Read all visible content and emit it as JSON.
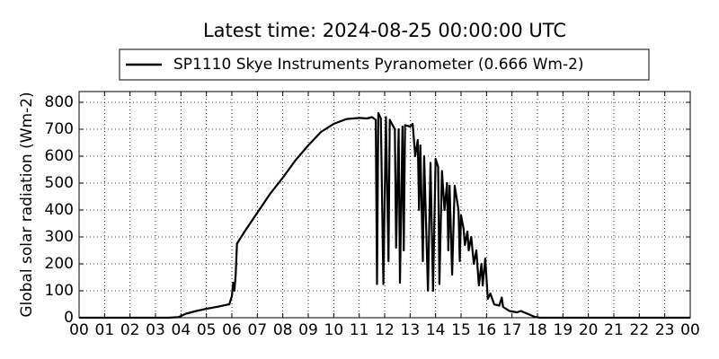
{
  "chart_data": {
    "type": "line",
    "title": "Latest time: 2024-08-25 00:00:00 UTC",
    "ylabel": "Global solar radiation (Wm-2)",
    "x": [
      0,
      3.5,
      3.9,
      4.2,
      4.6,
      5.0,
      5.5,
      5.9,
      6.0,
      6.05,
      6.1,
      6.15,
      6.2,
      6.5,
      7.0,
      7.5,
      8.0,
      8.5,
      9.0,
      9.5,
      10.0,
      10.5,
      11.0,
      11.3,
      11.5,
      11.65,
      11.7,
      11.75,
      11.85,
      11.95,
      12.05,
      12.15,
      12.2,
      12.4,
      12.45,
      12.55,
      12.6,
      12.7,
      12.75,
      12.8,
      13.0,
      13.1,
      13.2,
      13.3,
      13.35,
      13.4,
      13.5,
      13.55,
      13.7,
      13.8,
      13.9,
      14.0,
      14.1,
      14.15,
      14.25,
      14.35,
      14.45,
      14.5,
      14.55,
      14.65,
      14.75,
      14.9,
      14.95,
      15.0,
      15.1,
      15.15,
      15.25,
      15.3,
      15.4,
      15.5,
      15.6,
      15.7,
      15.8,
      15.85,
      15.95,
      16.05,
      16.15,
      16.3,
      16.5,
      16.6,
      16.65,
      16.9,
      17.2,
      17.35,
      17.6,
      17.9,
      18.1,
      24
    ],
    "series": [
      {
        "name": "SP1110 Skye Instruments Pyranometer (0.666 Wm-2)",
        "color": "#000000",
        "values": [
          0,
          0,
          2,
          15,
          25,
          33,
          42,
          50,
          80,
          130,
          100,
          160,
          275,
          320,
          390,
          460,
          520,
          585,
          640,
          690,
          720,
          738,
          742,
          740,
          745,
          735,
          125,
          760,
          740,
          125,
          745,
          210,
          735,
          700,
          260,
          700,
          130,
          710,
          250,
          715,
          710,
          720,
          600,
          660,
          400,
          640,
          210,
          600,
          100,
          575,
          100,
          590,
          560,
          125,
          545,
          400,
          500,
          250,
          490,
          160,
          490,
          400,
          210,
          380,
          330,
          270,
          320,
          250,
          300,
          200,
          250,
          120,
          200,
          120,
          220,
          70,
          90,
          50,
          45,
          75,
          40,
          25,
          20,
          25,
          15,
          3,
          0,
          0
        ]
      }
    ],
    "xlim": [
      0,
      24
    ],
    "xticks": [
      {
        "value": 0,
        "label": "00"
      },
      {
        "value": 1,
        "label": "01"
      },
      {
        "value": 2,
        "label": "02"
      },
      {
        "value": 3,
        "label": "03"
      },
      {
        "value": 4,
        "label": "04"
      },
      {
        "value": 5,
        "label": "05"
      },
      {
        "value": 6,
        "label": "06"
      },
      {
        "value": 7,
        "label": "07"
      },
      {
        "value": 8,
        "label": "08"
      },
      {
        "value": 9,
        "label": "09"
      },
      10,
      11,
      12,
      13,
      14,
      15,
      16,
      17,
      18,
      19,
      20,
      21,
      22,
      23,
      {
        "value": 24,
        "label": "00"
      }
    ],
    "ylim": [
      0,
      840
    ],
    "yticks": [
      0,
      100,
      200,
      300,
      400,
      500,
      600,
      700,
      800
    ],
    "grid": true
  }
}
